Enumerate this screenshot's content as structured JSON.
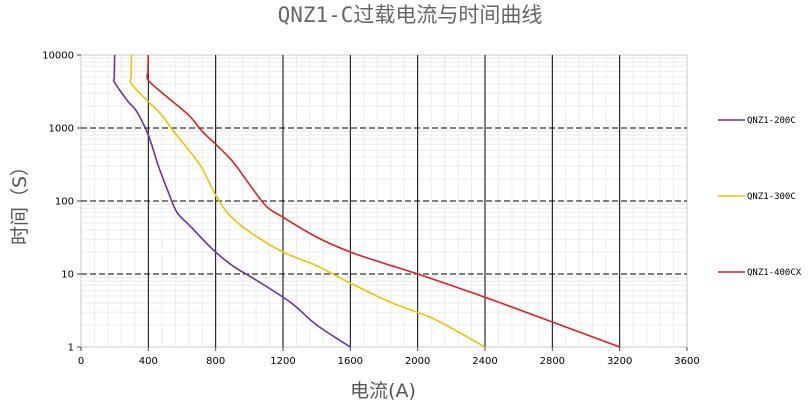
{
  "chart_data": {
    "type": "line",
    "title": "QNZ1-C过载电流与时间曲线",
    "xlabel": "电流(A)",
    "ylabel": "时间（S）",
    "xlim": [
      0,
      3600
    ],
    "ylim": [
      1,
      10000
    ],
    "yscale": "log",
    "x_ticks": [
      0,
      400,
      800,
      1200,
      1600,
      2000,
      2400,
      2800,
      3200,
      3600
    ],
    "x_tick_labels": [
      "0",
      "400",
      "800",
      "1200",
      "1600",
      "2000",
      "2400",
      "2800",
      "3200",
      "3600"
    ],
    "y_ticks": [
      1,
      10,
      100,
      1000,
      10000
    ],
    "y_tick_labels": [
      "1",
      "10",
      "100",
      "1000",
      "10000"
    ],
    "grid": true,
    "legend_position": "right",
    "series": [
      {
        "name": "QNZ1-200C",
        "color": "#7030a0",
        "points": [
          [
            200,
            10000
          ],
          [
            198,
            5000
          ],
          [
            200,
            4200
          ],
          [
            280,
            2300
          ],
          [
            330,
            1700
          ],
          [
            400,
            800
          ],
          [
            460,
            300
          ],
          [
            520,
            130
          ],
          [
            570,
            70
          ],
          [
            650,
            45
          ],
          [
            780,
            22
          ],
          [
            900,
            13
          ],
          [
            1050,
            8
          ],
          [
            1250,
            4
          ],
          [
            1400,
            2
          ],
          [
            1600,
            1
          ]
        ]
      },
      {
        "name": "QNZ1-300C",
        "color": "#f5c000",
        "points": [
          [
            300,
            10000
          ],
          [
            298,
            5000
          ],
          [
            300,
            4000
          ],
          [
            400,
            2300
          ],
          [
            480,
            1500
          ],
          [
            550,
            900
          ],
          [
            640,
            500
          ],
          [
            720,
            280
          ],
          [
            800,
            120
          ],
          [
            880,
            65
          ],
          [
            1000,
            38
          ],
          [
            1200,
            20
          ],
          [
            1400,
            13
          ],
          [
            1600,
            7.5
          ],
          [
            1850,
            4
          ],
          [
            2100,
            2.4
          ],
          [
            2400,
            1
          ]
        ]
      },
      {
        "name": "QNZ1-400CX",
        "color": "#e02020",
        "points": [
          [
            400,
            10000
          ],
          [
            398,
            6000
          ],
          [
            400,
            4500
          ],
          [
            500,
            2800
          ],
          [
            640,
            1500
          ],
          [
            720,
            900
          ],
          [
            800,
            600
          ],
          [
            900,
            350
          ],
          [
            1000,
            170
          ],
          [
            1100,
            85
          ],
          [
            1200,
            60
          ],
          [
            1400,
            32
          ],
          [
            1600,
            20
          ],
          [
            1800,
            14
          ],
          [
            2000,
            10
          ],
          [
            2400,
            4.8
          ],
          [
            2800,
            2.2
          ],
          [
            3200,
            1
          ]
        ]
      }
    ]
  }
}
